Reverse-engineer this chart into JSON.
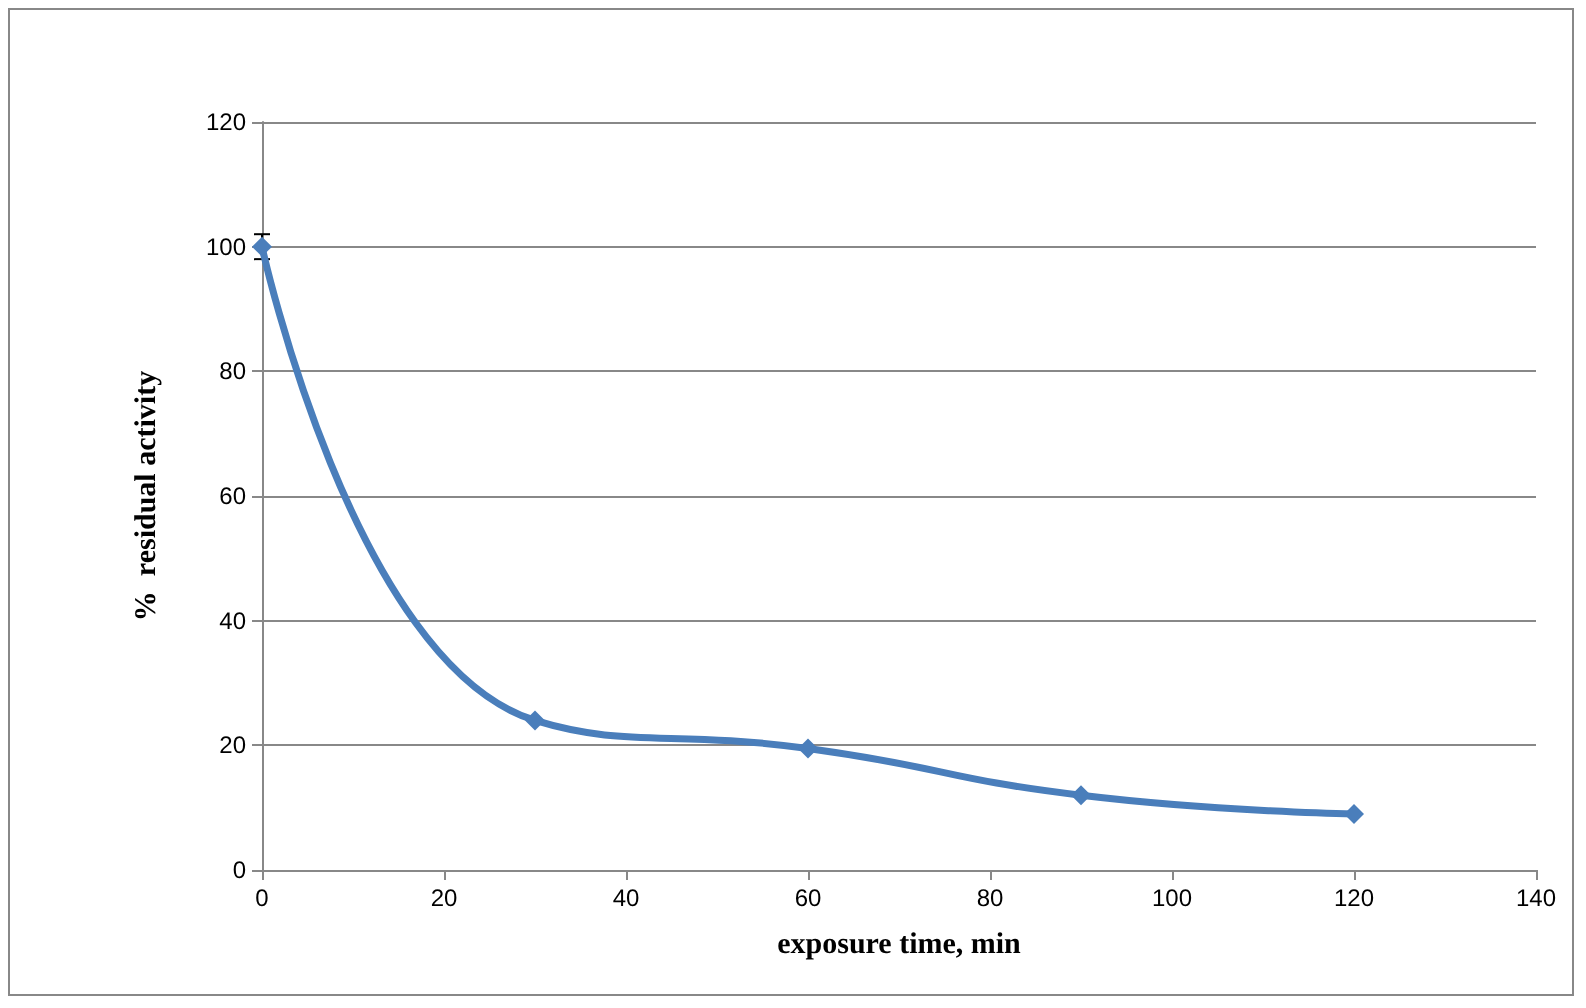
{
  "chart_data": {
    "type": "line",
    "xlabel": "exposure time, min",
    "ylabel": "%  residual activity",
    "x": [
      0,
      30,
      60,
      90,
      120
    ],
    "series": [
      {
        "color": "#4a7ebb",
        "values": [
          100,
          24,
          19.5,
          12,
          9
        ],
        "errors": [
          2,
          null,
          null,
          null,
          null
        ]
      }
    ],
    "xlim": [
      0,
      140
    ],
    "xticks": [
      0,
      20,
      40,
      60,
      80,
      100,
      120,
      140
    ],
    "ylim": [
      0,
      120
    ],
    "yticks": [
      0,
      20,
      40,
      60,
      80,
      100,
      120
    ],
    "grid": "y",
    "marker": "diamond",
    "line_style": "solid"
  }
}
